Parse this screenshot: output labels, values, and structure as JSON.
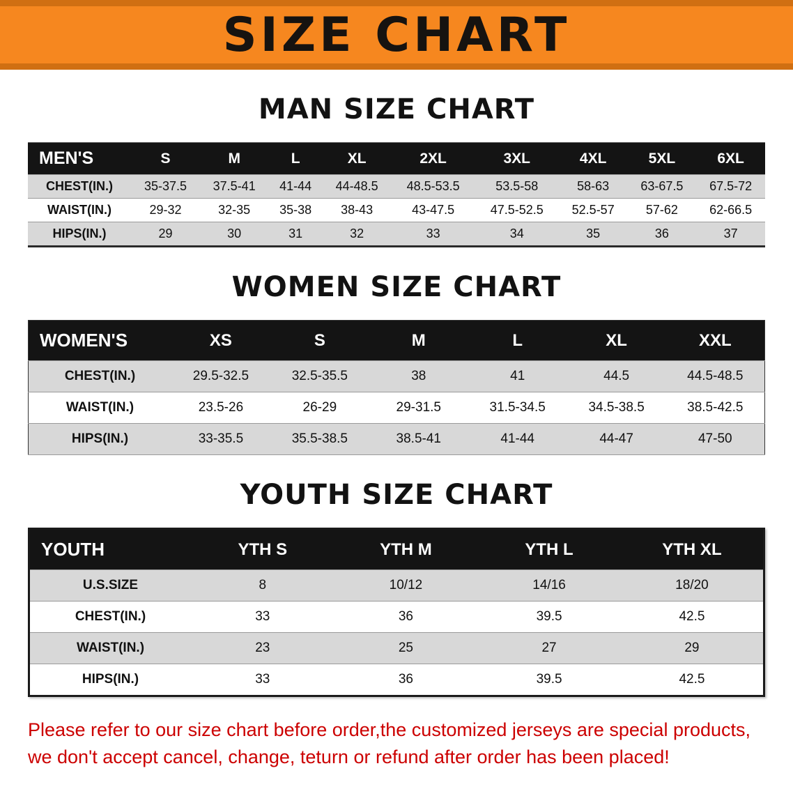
{
  "banner": {
    "title": "SIZE CHART",
    "bg_color": "#f6871f",
    "stripe_color": "#d06f12",
    "text_color": "#161310"
  },
  "sections": [
    {
      "id": "men",
      "heading": "MAN SIZE CHART",
      "table": {
        "header": [
          "MEN'S",
          "S",
          "M",
          "L",
          "XL",
          "2XL",
          "3XL",
          "4XL",
          "5XL",
          "6XL"
        ],
        "rows": [
          [
            "CHEST(IN.)",
            "35-37.5",
            "37.5-41",
            "41-44",
            "44-48.5",
            "48.5-53.5",
            "53.5-58",
            "58-63",
            "63-67.5",
            "67.5-72"
          ],
          [
            "WAIST(IN.)",
            "29-32",
            "32-35",
            "35-38",
            "38-43",
            "43-47.5",
            "47.5-52.5",
            "52.5-57",
            "57-62",
            "62-66.5"
          ],
          [
            "HIPS(IN.)",
            "29",
            "30",
            "31",
            "32",
            "33",
            "34",
            "35",
            "36",
            "37"
          ]
        ]
      }
    },
    {
      "id": "women",
      "heading": "WOMEN SIZE CHART",
      "table": {
        "header": [
          "WOMEN'S",
          "XS",
          "S",
          "M",
          "L",
          "XL",
          "XXL"
        ],
        "rows": [
          [
            "CHEST(IN.)",
            "29.5-32.5",
            "32.5-35.5",
            "38",
            "41",
            "44.5",
            "44.5-48.5"
          ],
          [
            "WAIST(IN.)",
            "23.5-26",
            "26-29",
            "29-31.5",
            "31.5-34.5",
            "34.5-38.5",
            "38.5-42.5"
          ],
          [
            "HIPS(IN.)",
            "33-35.5",
            "35.5-38.5",
            "38.5-41",
            "41-44",
            "44-47",
            "47-50"
          ]
        ]
      }
    },
    {
      "id": "youth",
      "heading": "YOUTH SIZE CHART",
      "table": {
        "header": [
          "YOUTH",
          "YTH S",
          "YTH M",
          "YTH L",
          "YTH XL"
        ],
        "rows": [
          [
            "U.S.SIZE",
            "8",
            "10/12",
            "14/16",
            "18/20"
          ],
          [
            "CHEST(IN.)",
            "33",
            "36",
            "39.5",
            "42.5"
          ],
          [
            "WAIST(IN.)",
            "23",
            "25",
            "27",
            "29"
          ],
          [
            "HIPS(IN.)",
            "33",
            "36",
            "39.5",
            "42.5"
          ]
        ]
      }
    }
  ],
  "disclaimer": {
    "text_color": "#cc0000",
    "line1": "Please refer to our size chart before order,the customized jerseys are special products,",
    "line2": "we don't accept cancel, change, teturn or refund after order has been placed!"
  }
}
